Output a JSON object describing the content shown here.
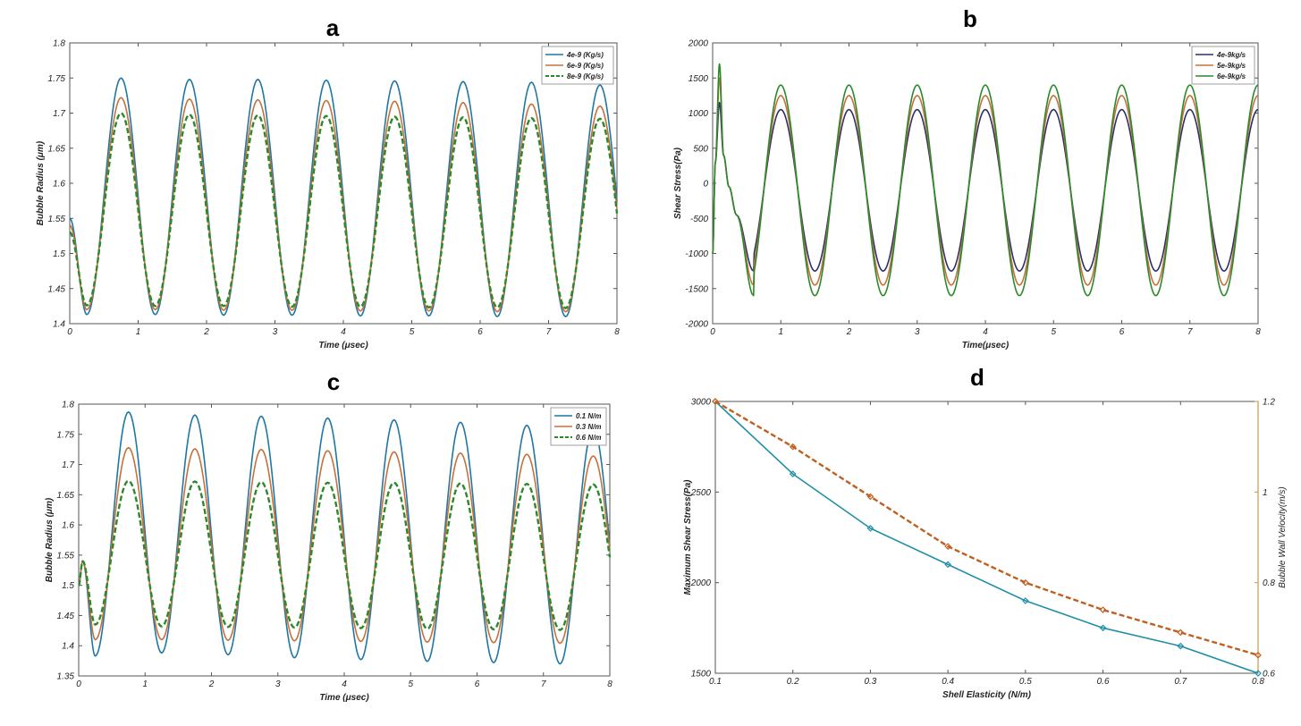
{
  "chart_data": [
    {
      "id": "a",
      "type": "line",
      "title": "a",
      "xlabel": "Time (μsec)",
      "ylabel": "Bubble Radius (μm)",
      "xlim": [
        0,
        8
      ],
      "ylim": [
        1.4,
        1.8
      ],
      "xticks": [
        "0",
        "1",
        "2",
        "3",
        "4",
        "5",
        "6",
        "7",
        "8"
      ],
      "yticks": [
        "1.4",
        "1.45",
        "1.5",
        "1.55",
        "1.6",
        "1.65",
        "1.7",
        "1.75",
        "1.8"
      ],
      "legend_position": "top-right",
      "grid": false,
      "period_usec": 1.0,
      "series": [
        {
          "name": "4e-9 (Kg/s)",
          "color": "#1f77a4",
          "dash": "solid",
          "start": 1.55,
          "first_min": 1.413,
          "peaks": [
            1.75,
            1.748,
            1.748,
            1.747,
            1.746,
            1.745,
            1.744,
            1.74
          ],
          "troughs": [
            1.413,
            1.413,
            1.412,
            1.412,
            1.411,
            1.411,
            1.41,
            1.41
          ]
        },
        {
          "name": "6e-9 (Kg/s)",
          "color": "#c8703a",
          "dash": "solid",
          "start": 1.54,
          "first_min": 1.42,
          "peaks": [
            1.722,
            1.72,
            1.719,
            1.718,
            1.717,
            1.715,
            1.713,
            1.71
          ],
          "troughs": [
            1.42,
            1.42,
            1.419,
            1.419,
            1.418,
            1.418,
            1.417,
            1.417
          ]
        },
        {
          "name": "8e-9 (Kg/s)",
          "color": "#2a8a2a",
          "dash": "dashed",
          "start": 1.53,
          "first_min": 1.426,
          "peaks": [
            1.7,
            1.698,
            1.697,
            1.696,
            1.695,
            1.694,
            1.693,
            1.692
          ],
          "troughs": [
            1.426,
            1.425,
            1.425,
            1.424,
            1.424,
            1.423,
            1.423,
            1.422
          ]
        }
      ]
    },
    {
      "id": "b",
      "type": "line",
      "title": "b",
      "xlabel": "Time(μsec)",
      "ylabel": "Shear Stress(Pa)",
      "xlim": [
        0,
        8
      ],
      "ylim": [
        -2000,
        2000
      ],
      "xticks": [
        "0",
        "1",
        "2",
        "3",
        "4",
        "5",
        "6",
        "7",
        "8"
      ],
      "yticks": [
        "-2000",
        "-1500",
        "-1000",
        "-500",
        "0",
        "500",
        "1000",
        "1500",
        "2000"
      ],
      "legend_position": "top-right",
      "grid": false,
      "period_usec": 1.0,
      "series": [
        {
          "name": "4e-9kg/s",
          "color": "#2b2f6b",
          "dash": "solid",
          "spike": 1150,
          "amp_pos": 1050,
          "amp_neg": -1250
        },
        {
          "name": "5e-9kg/s",
          "color": "#c8703a",
          "dash": "solid",
          "spike": 1500,
          "amp_pos": 1250,
          "amp_neg": -1450
        },
        {
          "name": "6e-9kg/s",
          "color": "#2a8a2a",
          "dash": "solid",
          "spike": 1700,
          "amp_pos": 1400,
          "amp_neg": -1600
        }
      ]
    },
    {
      "id": "c",
      "type": "line",
      "title": "c",
      "xlabel": "Time (μsec)",
      "ylabel": "Bubble Radius (μm)",
      "xlim": [
        0,
        8
      ],
      "ylim": [
        1.35,
        1.8
      ],
      "xticks": [
        "0",
        "1",
        "2",
        "3",
        "4",
        "5",
        "6",
        "7",
        "8"
      ],
      "yticks": [
        "1.35",
        "1.4",
        "1.45",
        "1.5",
        "1.55",
        "1.6",
        "1.65",
        "1.7",
        "1.75",
        "1.8"
      ],
      "legend_position": "top-right",
      "grid": false,
      "period_usec": 1.0,
      "series": [
        {
          "name": "0.1 N/m",
          "color": "#1f77a4",
          "dash": "solid",
          "start": 1.5,
          "bump": 1.54,
          "peaks": [
            1.787,
            1.782,
            1.78,
            1.777,
            1.774,
            1.77,
            1.765,
            1.76
          ],
          "troughs": [
            1.383,
            1.388,
            1.385,
            1.38,
            1.377,
            1.374,
            1.372,
            1.37
          ]
        },
        {
          "name": "0.3 N/m",
          "color": "#c8703a",
          "dash": "solid",
          "start": 1.5,
          "bump": 1.54,
          "peaks": [
            1.728,
            1.726,
            1.725,
            1.723,
            1.721,
            1.719,
            1.717,
            1.714
          ],
          "troughs": [
            1.41,
            1.41,
            1.409,
            1.408,
            1.407,
            1.406,
            1.405,
            1.404
          ]
        },
        {
          "name": "0.6 N/m",
          "color": "#2a8a2a",
          "dash": "dashed",
          "start": 1.5,
          "bump": 1.54,
          "peaks": [
            1.673,
            1.672,
            1.671,
            1.67,
            1.67,
            1.669,
            1.668,
            1.667
          ],
          "troughs": [
            1.435,
            1.432,
            1.431,
            1.43,
            1.429,
            1.428,
            1.427,
            1.426
          ]
        }
      ]
    },
    {
      "id": "d",
      "type": "line",
      "title": "d",
      "xlabel": "Shell Elasticity (N/m)",
      "ylabel": "Maximum Shear Stress(Pa)",
      "y2label": "Bubble Wall Velocity(m/s)",
      "xlim": [
        0.1,
        0.8
      ],
      "ylim": [
        1500,
        3000
      ],
      "y2lim": [
        0.6,
        1.2
      ],
      "xticks": [
        "0.1",
        "0.2",
        "0.3",
        "0.4",
        "0.5",
        "0.6",
        "0.7",
        "0.8"
      ],
      "yticks": [
        "1500",
        "2000",
        "2500",
        "3000"
      ],
      "y2ticks": [
        "0.6",
        "0.8",
        "1",
        "1.2"
      ],
      "grid": false,
      "x": [
        0.1,
        0.2,
        0.3,
        0.4,
        0.5,
        0.6,
        0.7,
        0.8
      ],
      "series": [
        {
          "axis": "left",
          "color": "#1f8fa8",
          "dash": "solid",
          "marker": "diamond",
          "values": [
            3000,
            2600,
            2300,
            2100,
            1900,
            1750,
            1650,
            1500
          ]
        },
        {
          "axis": "right",
          "color": "#c06020",
          "dash": "dashed",
          "marker": "diamond",
          "values": [
            1.2,
            1.1,
            0.99,
            0.88,
            0.8,
            0.74,
            0.69,
            0.64
          ]
        }
      ],
      "left_axis_color": "#1f8fa8",
      "right_axis_color": "#c89a50"
    }
  ]
}
